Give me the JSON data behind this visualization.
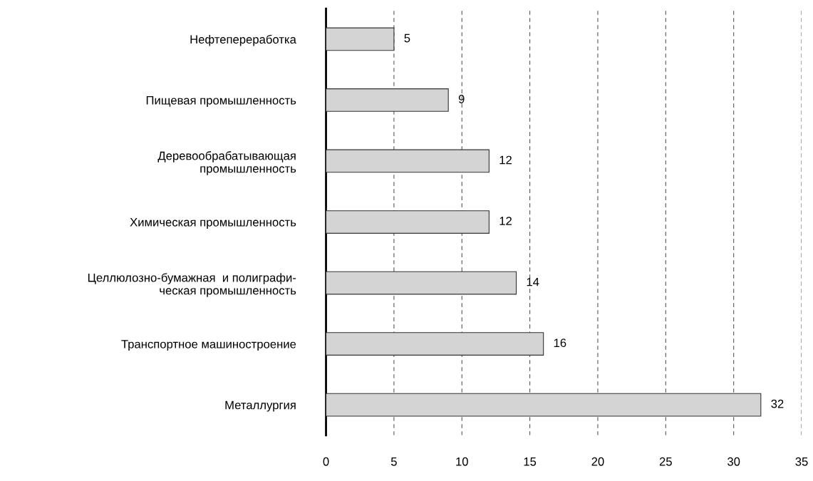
{
  "chart_data": {
    "type": "bar",
    "orientation": "horizontal",
    "categories": [
      "Нефтепереработка",
      "Пищевая промышленность",
      "Деревообрабатывающая\nпромышленность",
      "Химическая промышленность",
      "Целлюлозно-бумажная  и полиграфи-\nческая промышленность",
      "Транспортное машиностроение",
      "Металлургия"
    ],
    "values": [
      5,
      9,
      12,
      12,
      14,
      16,
      32
    ],
    "color": "#d4d4d4",
    "xlim": [
      0,
      35
    ],
    "xticks": [
      0,
      5,
      10,
      15,
      20,
      25,
      30,
      35
    ],
    "grid": "x",
    "data_labels": true,
    "legend": false
  }
}
